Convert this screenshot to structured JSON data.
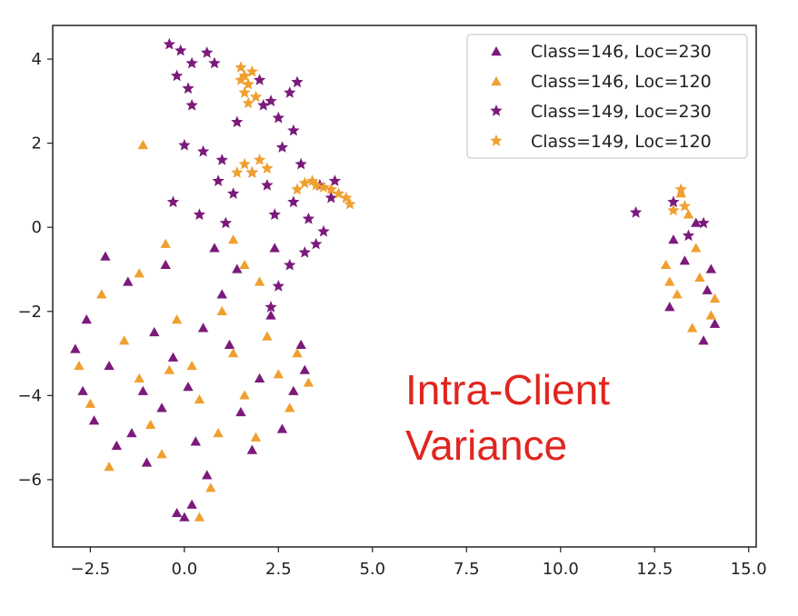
{
  "chart_data": {
    "type": "scatter",
    "title": "",
    "xlabel": "",
    "ylabel": "",
    "xlim": [
      -3.5,
      15.2
    ],
    "ylim": [
      -7.6,
      4.8
    ],
    "grid": false,
    "x_ticks": [
      -2.5,
      0.0,
      2.5,
      5.0,
      7.5,
      10.0,
      12.5,
      15.0
    ],
    "x_tick_labels": [
      "−2.5",
      "0.0",
      "2.5",
      "5.0",
      "7.5",
      "10.0",
      "12.5",
      "15.0"
    ],
    "y_ticks": [
      4,
      2,
      0,
      -2,
      -4,
      -6
    ],
    "y_tick_labels": [
      "4",
      "2",
      "0",
      "−2",
      "−4",
      "−6"
    ],
    "legend_position": "top-right",
    "series": [
      {
        "name": "Class=146, Loc=230",
        "marker": "triangle",
        "color": "#7b1a7b",
        "points": [
          [
            -2.1,
            -0.7
          ],
          [
            -2.6,
            -2.2
          ],
          [
            -2.9,
            -2.9
          ],
          [
            -2.7,
            -3.9
          ],
          [
            -2.4,
            -4.6
          ],
          [
            -2.0,
            -3.3
          ],
          [
            -1.8,
            -5.2
          ],
          [
            -1.4,
            -4.9
          ],
          [
            -1.0,
            -5.6
          ],
          [
            -0.8,
            -2.5
          ],
          [
            -0.5,
            -0.9
          ],
          [
            -0.3,
            -3.1
          ],
          [
            0.1,
            -3.8
          ],
          [
            0.3,
            -5.1
          ],
          [
            0.6,
            -5.9
          ],
          [
            0.8,
            -0.5
          ],
          [
            1.0,
            -1.6
          ],
          [
            1.2,
            -2.8
          ],
          [
            1.5,
            -4.4
          ],
          [
            1.8,
            -5.3
          ],
          [
            2.0,
            -3.6
          ],
          [
            2.3,
            -2.1
          ],
          [
            2.6,
            -4.8
          ],
          [
            2.9,
            -3.9
          ],
          [
            3.1,
            -2.8
          ],
          [
            3.2,
            -3.4
          ],
          [
            -0.2,
            -6.8
          ],
          [
            0.2,
            -6.6
          ],
          [
            0.0,
            -6.9
          ],
          [
            -1.5,
            -1.3
          ],
          [
            -1.1,
            -3.9
          ],
          [
            0.5,
            -2.4
          ],
          [
            1.4,
            -1.0
          ],
          [
            2.4,
            -0.5
          ],
          [
            -0.6,
            -4.3
          ],
          [
            13.6,
            0.1
          ],
          [
            13.3,
            -0.8
          ],
          [
            13.9,
            -1.5
          ],
          [
            12.9,
            -1.9
          ],
          [
            14.1,
            -2.3
          ],
          [
            13.8,
            -2.7
          ],
          [
            13.0,
            -0.3
          ],
          [
            14.0,
            -1.0
          ]
        ]
      },
      {
        "name": "Class=146, Loc=120",
        "marker": "triangle",
        "color": "#f0a030",
        "points": [
          [
            -1.1,
            1.95
          ],
          [
            -0.5,
            -0.4
          ],
          [
            1.3,
            -0.3
          ],
          [
            -1.2,
            -1.1
          ],
          [
            -2.2,
            -1.6
          ],
          [
            -2.8,
            -3.3
          ],
          [
            -2.5,
            -4.2
          ],
          [
            -2.0,
            -5.7
          ],
          [
            -1.6,
            -2.7
          ],
          [
            -1.2,
            -3.6
          ],
          [
            -0.9,
            -4.7
          ],
          [
            -0.6,
            -5.4
          ],
          [
            -0.2,
            -2.2
          ],
          [
            0.2,
            -3.3
          ],
          [
            0.4,
            -4.1
          ],
          [
            0.7,
            -6.2
          ],
          [
            0.4,
            -6.9
          ],
          [
            1.0,
            -2.0
          ],
          [
            1.3,
            -3.0
          ],
          [
            1.6,
            -4.0
          ],
          [
            1.9,
            -5.0
          ],
          [
            2.2,
            -2.6
          ],
          [
            2.5,
            -3.5
          ],
          [
            2.8,
            -4.3
          ],
          [
            3.0,
            -3.0
          ],
          [
            3.3,
            -3.7
          ],
          [
            2.0,
            -1.3
          ],
          [
            0.9,
            -4.9
          ],
          [
            -0.4,
            -3.4
          ],
          [
            1.6,
            -0.9
          ],
          [
            13.2,
            0.8
          ],
          [
            13.4,
            0.3
          ],
          [
            12.8,
            -0.9
          ],
          [
            13.1,
            -1.6
          ],
          [
            13.7,
            -1.2
          ],
          [
            14.1,
            -1.7
          ],
          [
            13.5,
            -2.4
          ],
          [
            14.0,
            -2.1
          ],
          [
            12.9,
            -1.3
          ],
          [
            13.6,
            -0.5
          ]
        ]
      },
      {
        "name": "Class=149, Loc=230",
        "marker": "star",
        "color": "#7b1a7b",
        "points": [
          [
            -0.4,
            4.35
          ],
          [
            -0.1,
            4.2
          ],
          [
            0.2,
            3.9
          ],
          [
            0.6,
            4.15
          ],
          [
            -0.2,
            3.6
          ],
          [
            0.1,
            3.3
          ],
          [
            0.8,
            3.9
          ],
          [
            2.0,
            3.5
          ],
          [
            2.3,
            3.0
          ],
          [
            2.8,
            3.2
          ],
          [
            3.0,
            3.45
          ],
          [
            2.1,
            2.9
          ],
          [
            1.4,
            2.5
          ],
          [
            2.5,
            2.6
          ],
          [
            2.9,
            2.3
          ],
          [
            0.0,
            1.95
          ],
          [
            0.5,
            1.8
          ],
          [
            1.0,
            1.6
          ],
          [
            2.6,
            1.9
          ],
          [
            3.1,
            1.5
          ],
          [
            0.9,
            1.1
          ],
          [
            1.3,
            0.8
          ],
          [
            2.2,
            1.0
          ],
          [
            2.9,
            0.6
          ],
          [
            3.6,
            1.0
          ],
          [
            4.0,
            1.1
          ],
          [
            3.9,
            0.7
          ],
          [
            -0.3,
            0.6
          ],
          [
            0.4,
            0.3
          ],
          [
            1.1,
            0.1
          ],
          [
            2.4,
            0.3
          ],
          [
            3.3,
            0.2
          ],
          [
            3.7,
            -0.1
          ],
          [
            3.2,
            -0.6
          ],
          [
            2.8,
            -0.9
          ],
          [
            2.5,
            -1.4
          ],
          [
            2.3,
            -1.9
          ],
          [
            3.5,
            -0.4
          ],
          [
            0.2,
            2.9
          ],
          [
            1.8,
            1.3
          ],
          [
            12.0,
            0.35
          ],
          [
            13.0,
            0.6
          ],
          [
            13.4,
            -0.2
          ],
          [
            13.8,
            0.1
          ]
        ]
      },
      {
        "name": "Class=149, Loc=120",
        "marker": "star",
        "color": "#f0a030",
        "points": [
          [
            1.5,
            3.8
          ],
          [
            1.6,
            3.6
          ],
          [
            1.7,
            3.4
          ],
          [
            1.8,
            3.7
          ],
          [
            1.6,
            3.2
          ],
          [
            1.7,
            2.95
          ],
          [
            1.5,
            3.5
          ],
          [
            1.9,
            3.1
          ],
          [
            1.6,
            1.5
          ],
          [
            1.8,
            1.3
          ],
          [
            2.0,
            1.6
          ],
          [
            2.2,
            1.4
          ],
          [
            1.4,
            1.3
          ],
          [
            3.2,
            1.05
          ],
          [
            3.5,
            1.0
          ],
          [
            3.7,
            0.95
          ],
          [
            3.9,
            0.9
          ],
          [
            4.1,
            0.8
          ],
          [
            4.3,
            0.7
          ],
          [
            4.4,
            0.55
          ],
          [
            3.4,
            1.1
          ],
          [
            3.0,
            0.9
          ],
          [
            13.2,
            0.9
          ],
          [
            13.0,
            0.4
          ],
          [
            13.3,
            0.5
          ]
        ]
      }
    ],
    "annotation": {
      "text_lines": [
        "Intra-Client",
        "Variance"
      ],
      "color": "#e0261f"
    }
  }
}
